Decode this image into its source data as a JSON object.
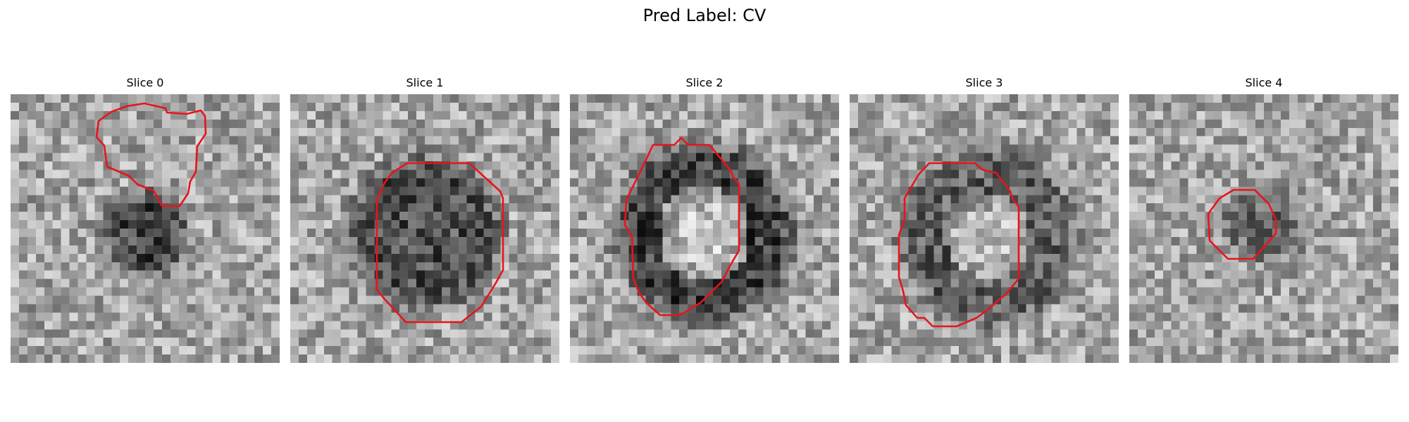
{
  "title": "Pred Label: CV",
  "colors": {
    "contour": "#e8141b",
    "background": "#ffffff"
  },
  "image_style": "grayscale noisy microscopy slices with red segmentation contour",
  "slices": [
    {
      "label": "Slice 0"
    },
    {
      "label": "Slice 1"
    },
    {
      "label": "Slice 2"
    },
    {
      "label": "Slice 3"
    },
    {
      "label": "Slice 4"
    }
  ]
}
